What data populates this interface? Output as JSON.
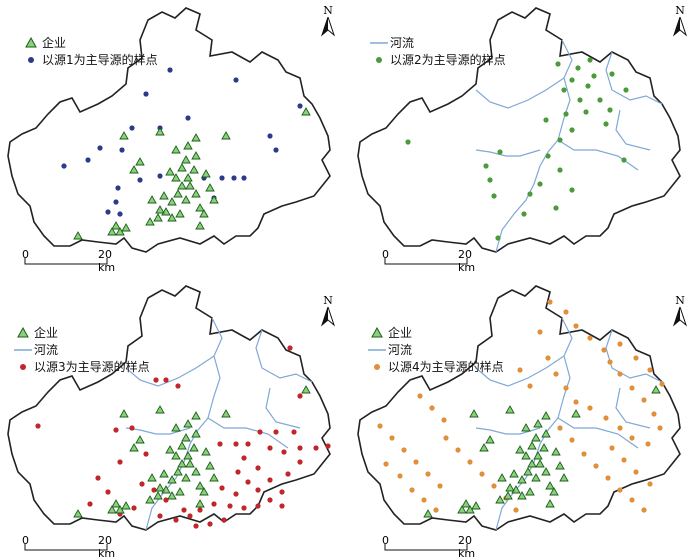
{
  "north_label": "N",
  "scale": {
    "zero": "0",
    "end": "20 km"
  },
  "colors": {
    "outline": "#222222",
    "river": "#7fa8d6",
    "enterprise_fill": "#8bd07a",
    "enterprise_stroke": "#1a5e1a",
    "source1": "#2c3a8c",
    "source2": "#4b9a3c",
    "source3": "#c0262a",
    "source4": "#e08f3a"
  },
  "panels": [
    {
      "id": "p1",
      "legend": [
        {
          "symbol": "enterprise-triangle",
          "label": "企业"
        },
        {
          "symbol": "source1-dot",
          "label": "以源1为主导源的样点"
        }
      ]
    },
    {
      "id": "p2",
      "legend": [
        {
          "symbol": "river-line",
          "label": "河流"
        },
        {
          "symbol": "source2-dot",
          "label": "以源2为主导源的样点"
        }
      ]
    },
    {
      "id": "p3",
      "legend": [
        {
          "symbol": "enterprise-triangle",
          "label": "企业"
        },
        {
          "symbol": "river-line",
          "label": "河流"
        },
        {
          "symbol": "source3-dot",
          "label": "以源3为主导源的样点"
        }
      ]
    },
    {
      "id": "p4",
      "legend": [
        {
          "symbol": "enterprise-triangle",
          "label": "企业"
        },
        {
          "symbol": "river-line",
          "label": "河流"
        },
        {
          "symbol": "source4-dot",
          "label": "以源4为主导源的样点"
        }
      ]
    }
  ]
}
